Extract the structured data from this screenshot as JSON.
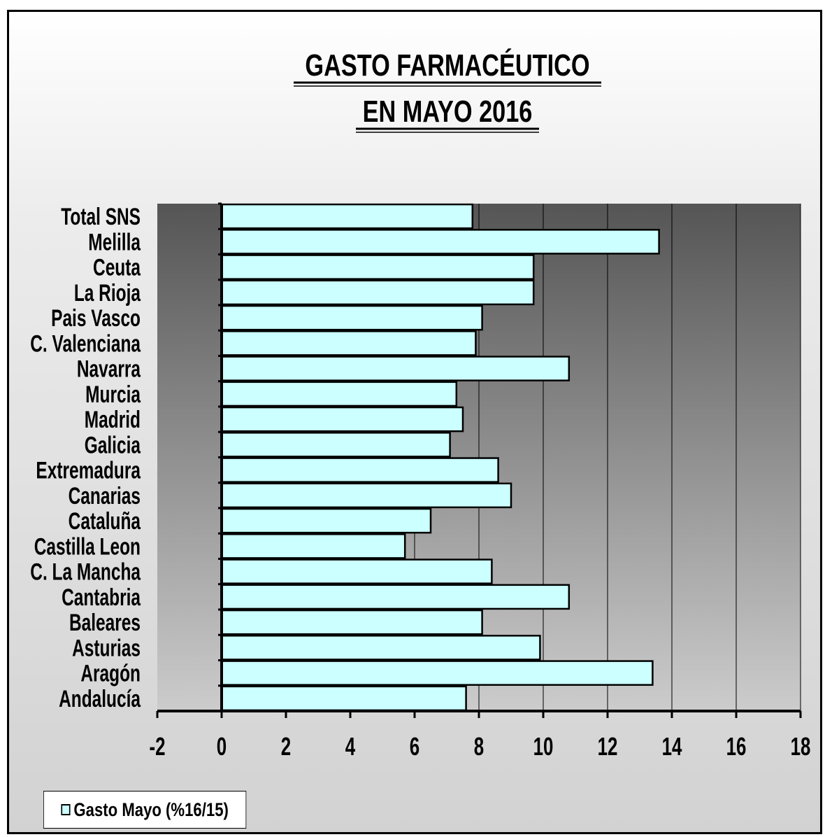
{
  "chart_data": {
    "type": "bar",
    "orientation": "horizontal",
    "title": [
      "GASTO FARMACÉUTICO",
      "EN MAYO 2016"
    ],
    "categories": [
      "Total SNS",
      "Melilla",
      "Ceuta",
      "La Rioja",
      "Pais Vasco",
      "C. Valenciana",
      "Navarra",
      "Murcia",
      "Madrid",
      "Galicia",
      "Extremadura",
      "Canarias",
      "Cataluña",
      "Castilla Leon",
      "C. La Mancha",
      "Cantabria",
      "Baleares",
      "Asturias",
      "Aragón",
      "Andalucía"
    ],
    "series": [
      {
        "name": "Gasto Mayo (%16/15)",
        "values": [
          7.8,
          13.6,
          9.7,
          9.7,
          8.1,
          7.9,
          10.8,
          7.3,
          7.5,
          7.1,
          8.6,
          9.0,
          6.5,
          5.7,
          8.4,
          10.8,
          8.1,
          9.9,
          13.4,
          7.6
        ]
      }
    ],
    "xlim": [
      -2,
      18
    ],
    "xticks": [
      -2,
      0,
      2,
      4,
      6,
      8,
      10,
      12,
      14,
      16,
      18
    ],
    "xlabel": "",
    "ylabel": "",
    "grid": "vertical",
    "legend_position": "bottom-left",
    "colors": {
      "bar_fill": "#ccffff",
      "bar_stroke": "#000000",
      "plot_bg_top": "#555555",
      "plot_bg_bottom": "#cccccc",
      "gridline": "#000000"
    }
  }
}
